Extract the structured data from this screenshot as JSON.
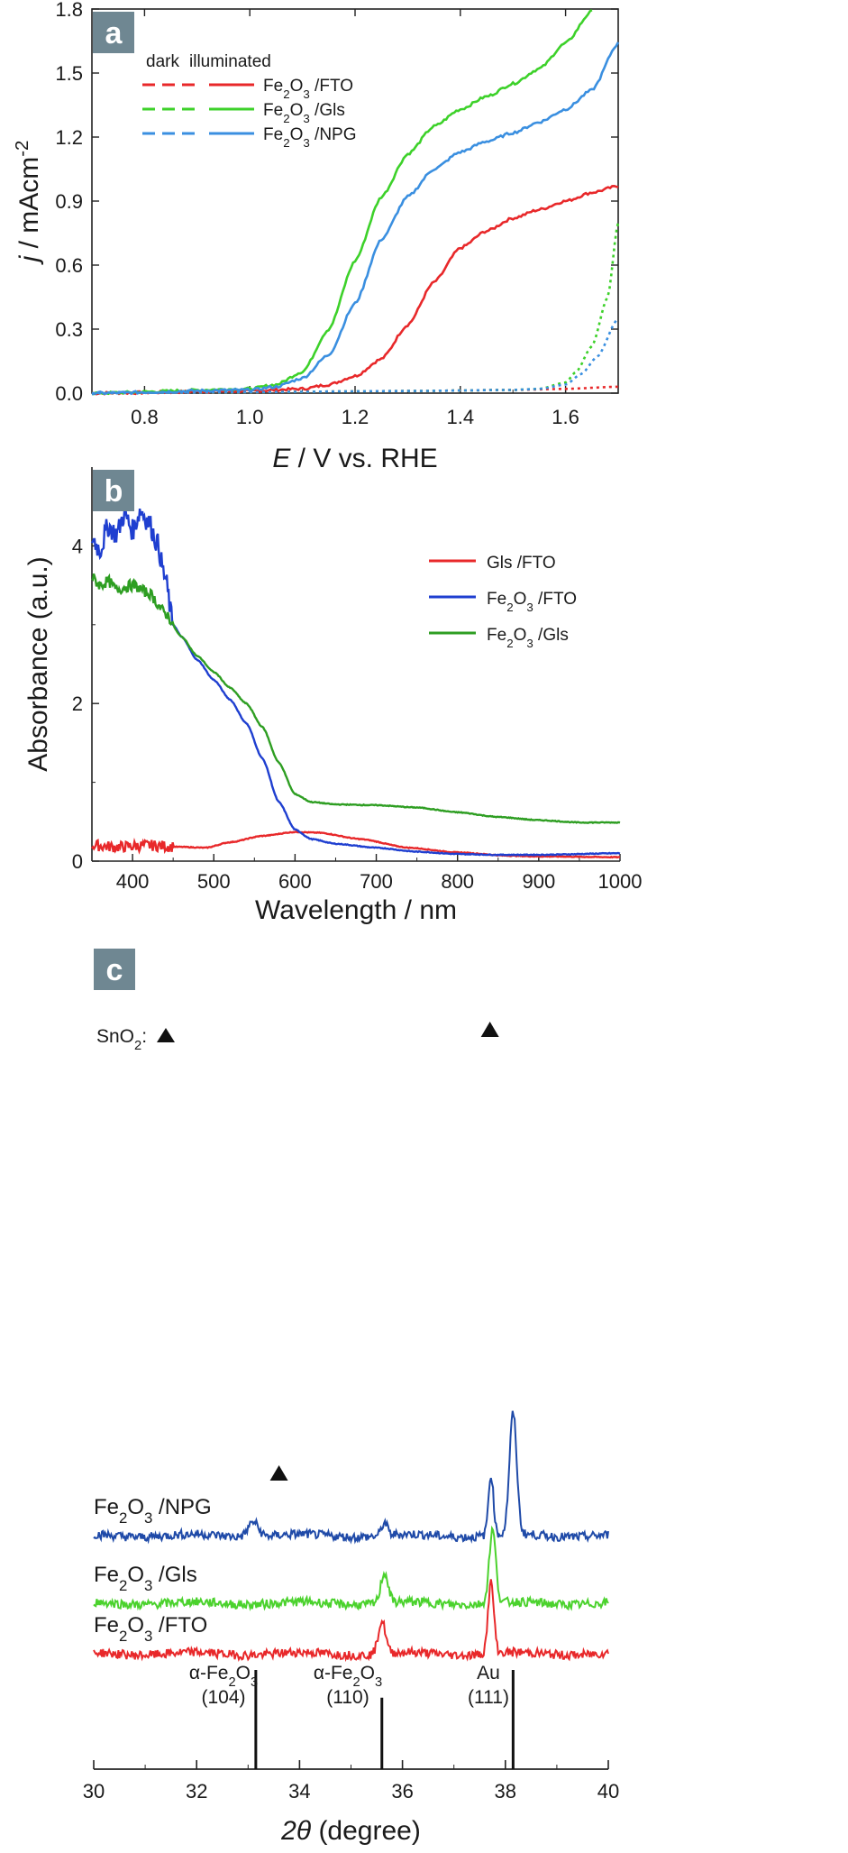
{
  "chart_data": [
    {
      "panel": "a",
      "type": "line",
      "title": "",
      "xlabel": "E / V vs. RHE",
      "ylabel": "j / mAcm-2",
      "xlim": [
        0.7,
        1.7
      ],
      "ylim": [
        0,
        1.8
      ],
      "x_ticks": [
        "0.8",
        "1.0",
        "1.2",
        "1.4",
        "1.6"
      ],
      "y_ticks": [
        "0.0",
        "0.3",
        "0.6",
        "0.9",
        "1.2",
        "1.5",
        "1.8"
      ],
      "legend_header_dark": "dark",
      "legend_header_illuminated": "illuminated",
      "legend_position": "top-left",
      "series": [
        {
          "name": "Fe2O3 /FTO",
          "label_main": "Fe",
          "label_sub1": "2",
          "label_mid": "O",
          "label_sub2": "3",
          "label_rest": " /FTO",
          "color": "#e8282a",
          "illuminated": {
            "x": [
              0.7,
              1.0,
              1.1,
              1.15,
              1.2,
              1.25,
              1.3,
              1.35,
              1.4,
              1.45,
              1.5,
              1.55,
              1.6,
              1.65,
              1.7
            ],
            "y": [
              0.0,
              0.01,
              0.02,
              0.04,
              0.08,
              0.16,
              0.32,
              0.52,
              0.68,
              0.76,
              0.82,
              0.86,
              0.9,
              0.94,
              0.97
            ]
          },
          "dark": {
            "x": [
              0.7,
              1.0,
              1.3,
              1.5,
              1.6,
              1.7
            ],
            "y": [
              0.0,
              0.005,
              0.01,
              0.015,
              0.02,
              0.03
            ]
          }
        },
        {
          "name": "Fe2O3 /Gls",
          "label_main": "Fe",
          "label_sub1": "2",
          "label_mid": "O",
          "label_sub2": "3",
          "label_rest": " /Gls",
          "color": "#3dd12a",
          "illuminated": {
            "x": [
              0.7,
              1.0,
              1.05,
              1.1,
              1.15,
              1.2,
              1.25,
              1.3,
              1.35,
              1.4,
              1.45,
              1.5,
              1.55,
              1.6,
              1.65
            ],
            "y": [
              0.0,
              0.02,
              0.04,
              0.1,
              0.3,
              0.62,
              0.92,
              1.12,
              1.25,
              1.33,
              1.39,
              1.45,
              1.52,
              1.64,
              1.79
            ]
          },
          "dark": {
            "x": [
              0.7,
              1.0,
              1.3,
              1.5,
              1.55,
              1.6,
              1.62,
              1.65,
              1.68,
              1.7
            ],
            "y": [
              0.0,
              0.005,
              0.01,
              0.015,
              0.02,
              0.05,
              0.1,
              0.22,
              0.45,
              0.8
            ]
          }
        },
        {
          "name": "Fe2O3 /NPG",
          "label_main": "Fe",
          "label_sub1": "2",
          "label_mid": "O",
          "label_sub2": "3",
          "label_rest": " /NPG",
          "color": "#3a8fe0",
          "illuminated": {
            "x": [
              0.7,
              1.0,
              1.05,
              1.1,
              1.15,
              1.2,
              1.25,
              1.3,
              1.35,
              1.4,
              1.45,
              1.5,
              1.55,
              1.6,
              1.65,
              1.7
            ],
            "y": [
              0.0,
              0.015,
              0.03,
              0.07,
              0.18,
              0.42,
              0.72,
              0.92,
              1.05,
              1.13,
              1.18,
              1.22,
              1.27,
              1.33,
              1.42,
              1.64
            ]
          },
          "dark": {
            "x": [
              0.7,
              1.0,
              1.3,
              1.5,
              1.55,
              1.6,
              1.63,
              1.66,
              1.7
            ],
            "y": [
              0.0,
              0.005,
              0.01,
              0.015,
              0.02,
              0.04,
              0.09,
              0.17,
              0.35
            ]
          }
        }
      ]
    },
    {
      "panel": "b",
      "type": "line",
      "title": "",
      "xlabel": "Wavelength / nm",
      "ylabel": "Absorbance (a.u.)",
      "xlim": [
        350,
        1000
      ],
      "ylim": [
        0,
        5
      ],
      "x_ticks": [
        "400",
        "500",
        "600",
        "700",
        "800",
        "900",
        "1000"
      ],
      "y_ticks": [
        "0",
        "2",
        "4"
      ],
      "legend_position": "top-right",
      "series": [
        {
          "name": "Gls /FTO",
          "label_main": "Gls /FTO",
          "label_sub1": "",
          "label_mid": "",
          "label_sub2": "",
          "label_rest": "",
          "color": "#e8282a",
          "x": [
            350,
            380,
            420,
            460,
            490,
            520,
            560,
            600,
            630,
            680,
            740,
            800,
            860,
            900,
            1000
          ],
          "y": [
            0.2,
            0.18,
            0.2,
            0.18,
            0.17,
            0.24,
            0.32,
            0.37,
            0.36,
            0.28,
            0.17,
            0.11,
            0.07,
            0.06,
            0.05
          ]
        },
        {
          "name": "Fe2O3 /FTO",
          "label_main": "Fe",
          "label_sub1": "2",
          "label_mid": "O",
          "label_sub2": "3",
          "label_rest": " /FTO",
          "color": "#1f3fd0",
          "x": [
            350,
            360,
            370,
            380,
            390,
            400,
            410,
            420,
            430,
            440,
            450,
            460,
            480,
            500,
            520,
            540,
            560,
            580,
            600,
            620,
            650,
            700,
            750,
            800,
            850,
            900,
            1000
          ],
          "y": [
            4.1,
            3.95,
            4.25,
            4.15,
            4.4,
            4.2,
            4.45,
            4.3,
            4.05,
            3.6,
            3.0,
            2.85,
            2.55,
            2.3,
            2.05,
            1.75,
            1.3,
            0.75,
            0.4,
            0.28,
            0.22,
            0.17,
            0.12,
            0.09,
            0.08,
            0.08,
            0.1
          ]
        },
        {
          "name": "Fe2O3 /Gls",
          "label_main": "Fe",
          "label_sub1": "2",
          "label_mid": "O",
          "label_sub2": "3",
          "label_rest": " /Gls",
          "color": "#2e9e22",
          "x": [
            350,
            360,
            370,
            380,
            400,
            420,
            440,
            460,
            480,
            500,
            520,
            540,
            560,
            580,
            600,
            620,
            650,
            700,
            750,
            800,
            850,
            900,
            950,
            1000
          ],
          "y": [
            3.6,
            3.5,
            3.55,
            3.45,
            3.5,
            3.4,
            3.15,
            2.85,
            2.6,
            2.4,
            2.2,
            2.0,
            1.7,
            1.25,
            0.85,
            0.75,
            0.72,
            0.71,
            0.68,
            0.62,
            0.56,
            0.52,
            0.49,
            0.49
          ]
        }
      ]
    },
    {
      "panel": "c",
      "type": "line",
      "title": "",
      "xlabel_symbol": "2θ",
      "xlabel_unit": " (degree)",
      "ylabel": "",
      "xlim": [
        30,
        40
      ],
      "x_ticks": [
        "30",
        "32",
        "34",
        "36",
        "38",
        "40"
      ],
      "sno2_label": "SnO",
      "sno2_sub": "2",
      "sno2_suffix": ":",
      "sno2_markers_x": [
        33.6,
        37.7
      ],
      "series": [
        {
          "name": "Fe2O3 /NPG",
          "label_main": "Fe",
          "label_sub1": "2",
          "label_mid": "O",
          "label_sub2": "3",
          "label_rest": " /NPG",
          "color": "#1f4aa8",
          "peaks": [
            {
              "x": 33.1,
              "h": 0.6,
              "w": 0.14
            },
            {
              "x": 35.65,
              "h": 0.5,
              "w": 0.08
            },
            {
              "x": 37.72,
              "h": 2.4,
              "w": 0.07
            },
            {
              "x": 38.15,
              "h": 4.8,
              "w": 0.1
            }
          ]
        },
        {
          "name": "Fe2O3 /Gls",
          "label_main": "Fe",
          "label_sub1": "2",
          "label_mid": "O",
          "label_sub2": "3",
          "label_rest": " /Gls",
          "color": "#4bd22d",
          "peaks": [
            {
              "x": 35.65,
              "h": 1.2,
              "w": 0.1
            },
            {
              "x": 37.75,
              "h": 2.9,
              "w": 0.09
            }
          ]
        },
        {
          "name": "Fe2O3 /FTO",
          "label_main": "Fe",
          "label_sub1": "2",
          "label_mid": "O",
          "label_sub2": "3",
          "label_rest": " /FTO",
          "color": "#e8282a",
          "peaks": [
            {
              "x": 35.6,
              "h": 1.3,
              "w": 0.1
            },
            {
              "x": 37.72,
              "h": 2.8,
              "w": 0.08
            }
          ]
        }
      ],
      "reference_lines": [
        {
          "x": 33.15,
          "label_main": "α-Fe",
          "label_sub1": "2",
          "label_mid": "O",
          "label_sub2": "3",
          "label_index": "(104)",
          "intensity": 1.0
        },
        {
          "x": 35.6,
          "label_main": "α-Fe",
          "label_sub1": "2",
          "label_mid": "O",
          "label_sub2": "3",
          "label_index": "(110)",
          "intensity": 0.72
        },
        {
          "x": 38.15,
          "label_main": "Au",
          "label_sub1": "",
          "label_mid": "",
          "label_sub2": "",
          "label_index": "(111)",
          "intensity": 1.0
        }
      ]
    }
  ]
}
